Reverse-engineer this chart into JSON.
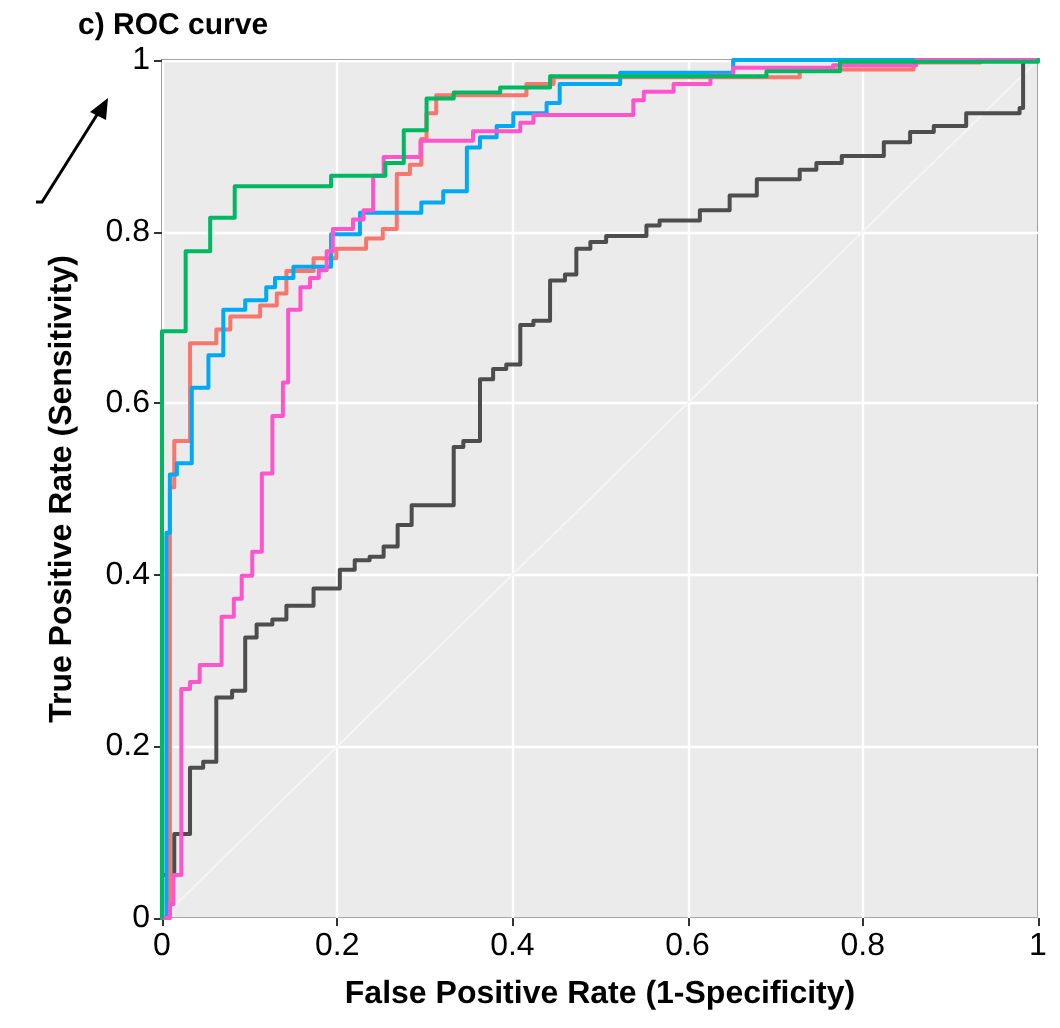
{
  "chart_data": {
    "type": "step",
    "title": "c) ROC curve",
    "xlabel": "False Positive Rate (1-Specificity)",
    "ylabel": "True Positive Rate (Sensitivity)",
    "xlim": [
      0,
      1
    ],
    "ylim": [
      0,
      1
    ],
    "xticks": [
      0,
      0.2,
      0.4,
      0.6,
      0.8,
      1
    ],
    "yticks": [
      0,
      0.2,
      0.4,
      0.6,
      0.8,
      1
    ],
    "grid": true,
    "marker": "none",
    "line_style": "solid",
    "series": [
      {
        "type": "line",
        "color": "#f5f5f5",
        "x": [
          0,
          1
        ],
        "values": [
          0,
          1
        ]
      },
      {
        "color": "#4d4d4d",
        "x": [
          0,
          0,
          0.014,
          0.032,
          0.047,
          0.062,
          0.08,
          0.095,
          0.108,
          0.126,
          0.142,
          0.173,
          0.203,
          0.22,
          0.237,
          0.253,
          0.269,
          0.285,
          0.285,
          0.333,
          0.344,
          0.363,
          0.378,
          0.393,
          0.409,
          0.424,
          0.443,
          0.46,
          0.473,
          0.489,
          0.507,
          0.553,
          0.568,
          0.614,
          0.648,
          0.679,
          0.728,
          0.747,
          0.776,
          0.824,
          0.854,
          0.881,
          0.918,
          0.979,
          0.983,
          1
        ],
        "values": [
          0,
          0.05,
          0.098,
          0.175,
          0.182,
          0.257,
          0.265,
          0.327,
          0.342,
          0.348,
          0.364,
          0.384,
          0.406,
          0.417,
          0.421,
          0.433,
          0.458,
          0.472,
          0.481,
          0.549,
          0.556,
          0.628,
          0.64,
          0.645,
          0.691,
          0.696,
          0.743,
          0.75,
          0.78,
          0.788,
          0.795,
          0.807,
          0.813,
          0.825,
          0.842,
          0.861,
          0.872,
          0.88,
          0.888,
          0.904,
          0.916,
          0.923,
          0.938,
          0.944,
          1,
          1
        ]
      },
      {
        "color": "#f8766d",
        "x": [
          0,
          0.009,
          0.014,
          0.032,
          0.062,
          0.078,
          0.112,
          0.131,
          0.142,
          0.173,
          0.199,
          0.233,
          0.252,
          0.268,
          0.283,
          0.296,
          0.302,
          0.313,
          0.416,
          0.447,
          0.728,
          0.858,
          0.934,
          1
        ],
        "values": [
          0,
          0.502,
          0.556,
          0.67,
          0.686,
          0.701,
          0.714,
          0.728,
          0.754,
          0.769,
          0.78,
          0.792,
          0.803,
          0.867,
          0.878,
          0.908,
          0.938,
          0.959,
          0.972,
          0.98,
          0.989,
          0.997,
          1,
          1
        ]
      },
      {
        "color": "#00a9f4",
        "x": [
          0,
          0.005,
          0.009,
          0.017,
          0.034,
          0.053,
          0.07,
          0.095,
          0.119,
          0.129,
          0.15,
          0.193,
          0.226,
          0.296,
          0.321,
          0.348,
          0.363,
          0.382,
          0.401,
          0.439,
          0.454,
          0.523,
          0.652,
          1
        ],
        "values": [
          0,
          0.449,
          0.517,
          0.53,
          0.618,
          0.656,
          0.709,
          0.72,
          0.735,
          0.746,
          0.759,
          0.797,
          0.822,
          0.834,
          0.847,
          0.898,
          0.91,
          0.923,
          0.938,
          0.95,
          0.972,
          0.985,
          1,
          1
        ]
      },
      {
        "color": "#ff55cc",
        "x": [
          0,
          0.009,
          0.013,
          0.022,
          0.032,
          0.043,
          0.068,
          0.082,
          0.091,
          0.103,
          0.114,
          0.114,
          0.126,
          0.138,
          0.144,
          0.158,
          0.169,
          0.179,
          0.188,
          0.195,
          0.218,
          0.23,
          0.241,
          0.253,
          0.295,
          0.355,
          0.409,
          0.424,
          0.538,
          0.55,
          0.584,
          0.626,
          0.652,
          0.766,
          0.861,
          1
        ],
        "values": [
          0,
          0.016,
          0.05,
          0.267,
          0.275,
          0.295,
          0.351,
          0.372,
          0.399,
          0.427,
          0.472,
          0.518,
          0.585,
          0.624,
          0.709,
          0.735,
          0.746,
          0.755,
          0.777,
          0.803,
          0.814,
          0.825,
          0.865,
          0.887,
          0.906,
          0.917,
          0.927,
          0.936,
          0.953,
          0.963,
          0.972,
          0.982,
          0.991,
          0.994,
          1,
          1
        ]
      },
      {
        "color": "#00b862",
        "x": [
          0,
          0,
          0.027,
          0.055,
          0.083,
          0.193,
          0.255,
          0.276,
          0.302,
          0.333,
          0.386,
          0.443,
          0.69,
          0.774,
          1
        ],
        "values": [
          0,
          0.684,
          0.777,
          0.816,
          0.853,
          0.865,
          0.88,
          0.918,
          0.955,
          0.962,
          0.968,
          0.981,
          0.987,
          0.998,
          1
        ]
      }
    ]
  }
}
